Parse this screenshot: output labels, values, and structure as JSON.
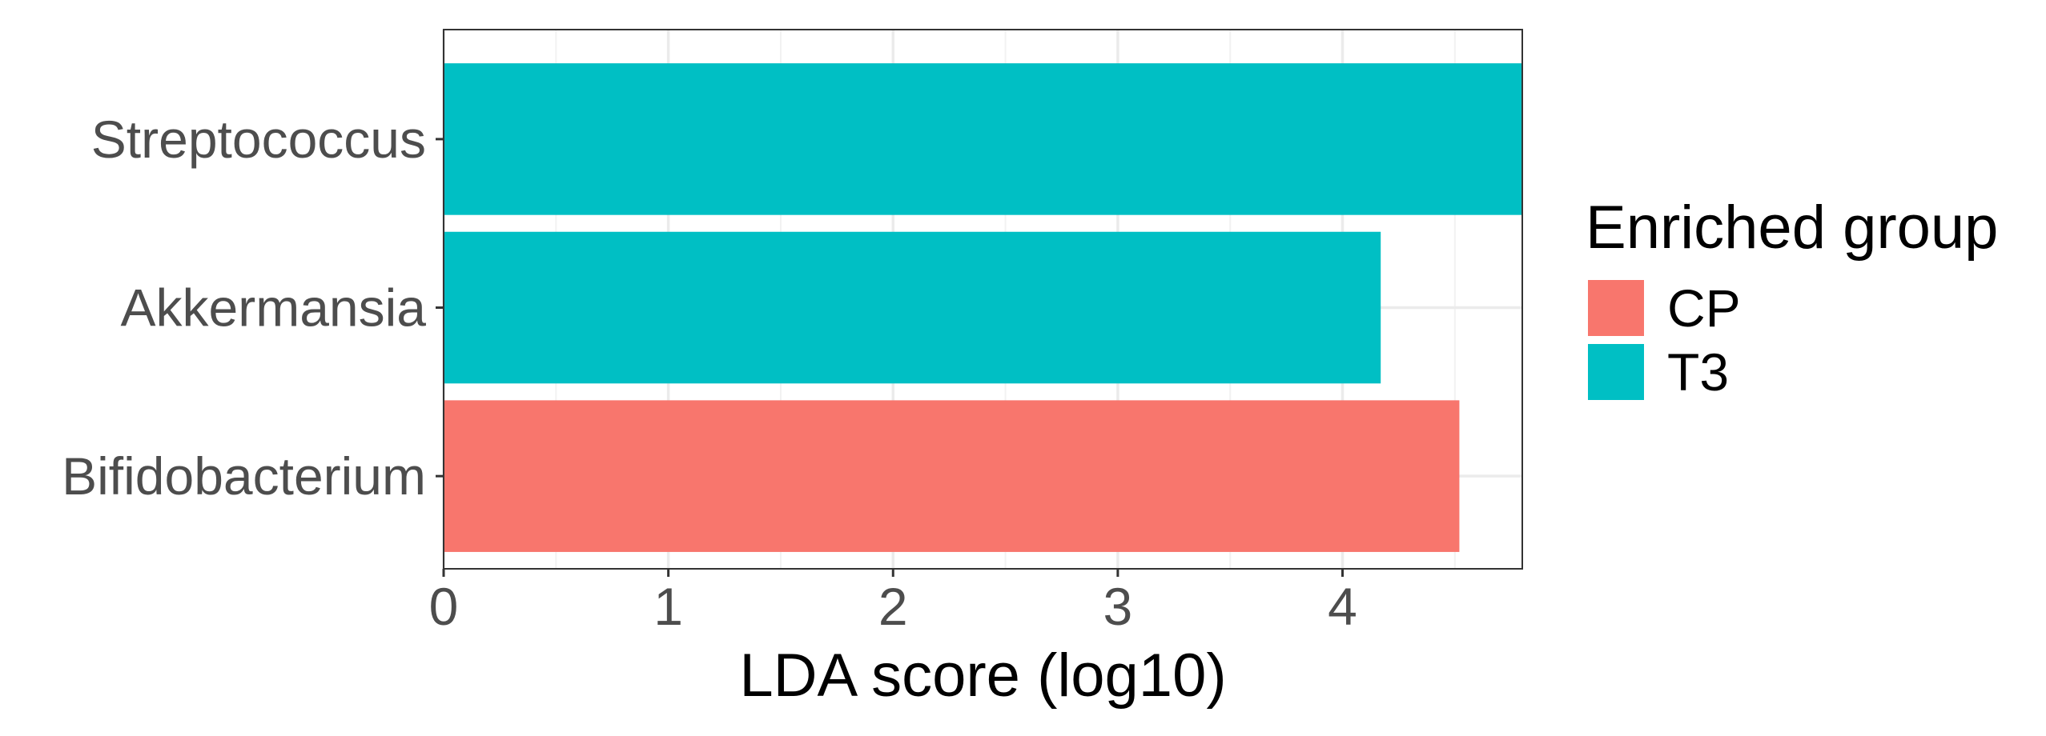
{
  "chart_data": {
    "type": "bar",
    "orientation": "horizontal",
    "categories": [
      "Streptococcus",
      "Akkermansia",
      "Bifidobacterium"
    ],
    "values": [
      4.8,
      4.17,
      4.52
    ],
    "groups": [
      "T3",
      "T3",
      "CP"
    ],
    "xlabel": "LDA score (log10)",
    "ylabel": "",
    "xlim": [
      0,
      4.8
    ],
    "xticks": [
      0,
      1,
      2,
      3,
      4
    ],
    "grid": true,
    "legend": {
      "title": "Enriched group",
      "placement": "right",
      "entries": [
        {
          "label": "CP",
          "color": "#F8766D"
        },
        {
          "label": "T3",
          "color": "#00BFC4"
        }
      ]
    }
  }
}
